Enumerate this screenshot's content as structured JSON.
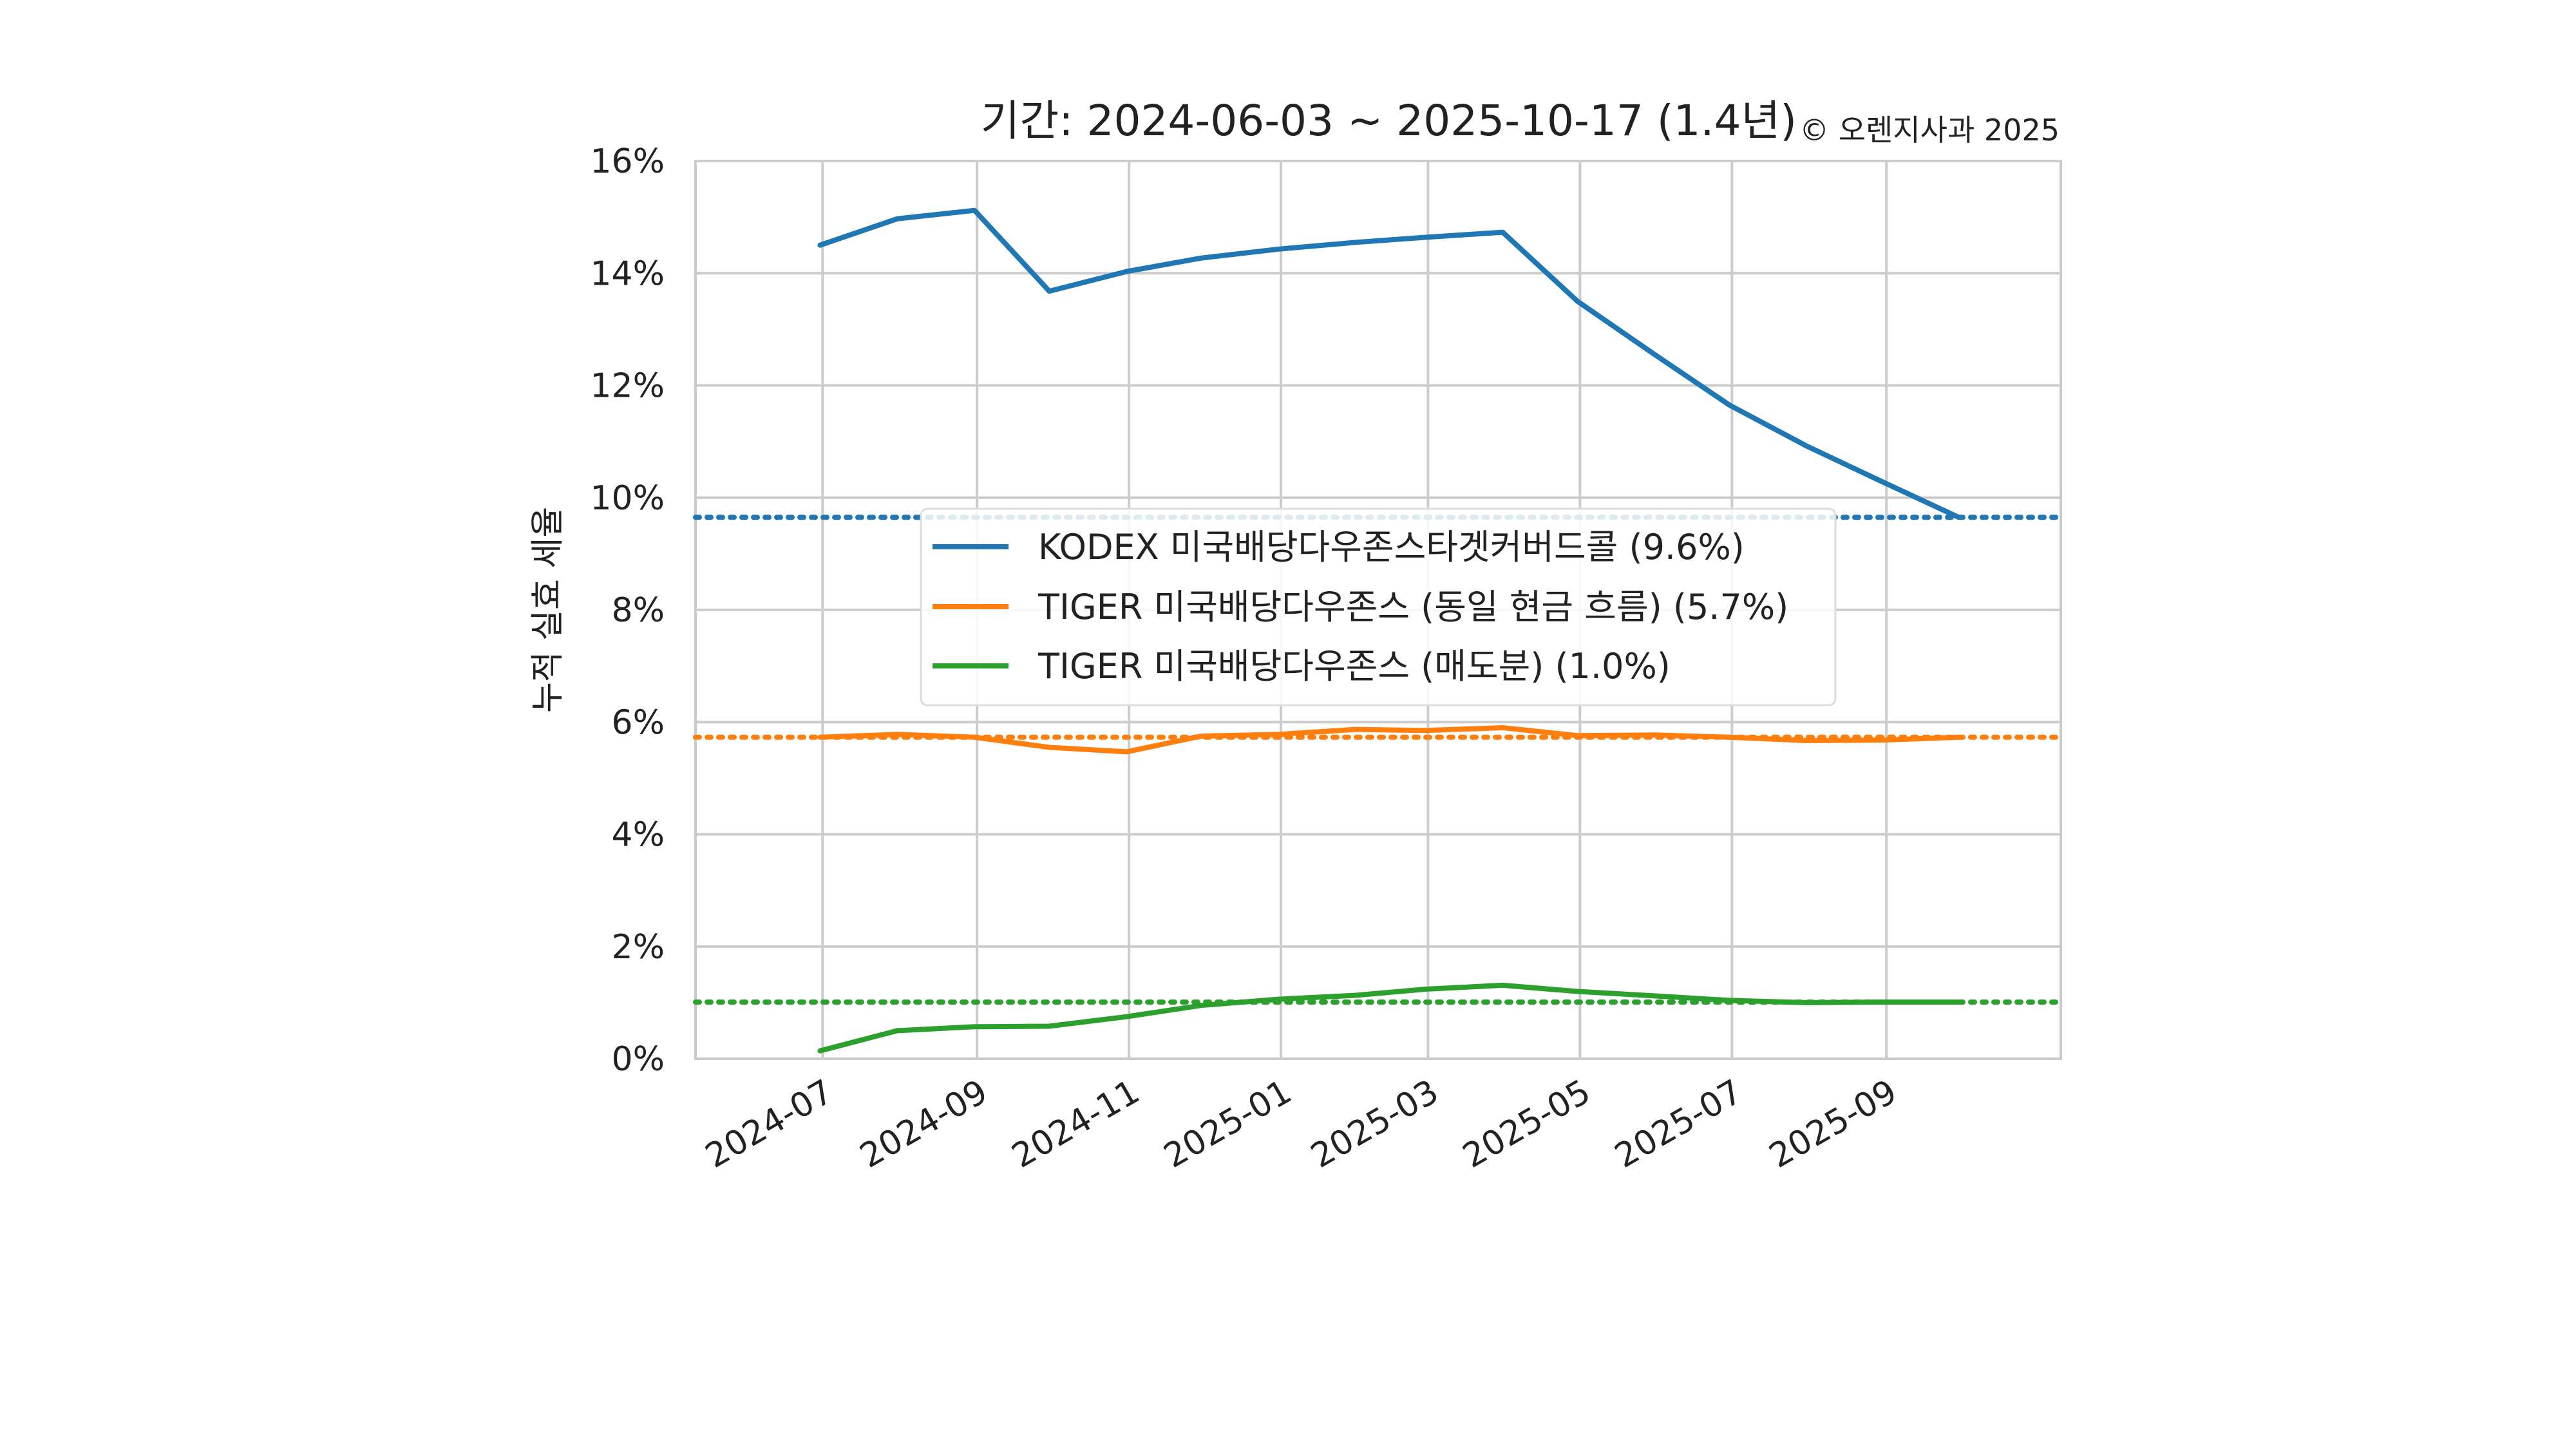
{
  "chart_data": {
    "type": "line",
    "title": "기간: 2024-06-03 ~ 2025-10-17 (1.4년)",
    "copyright": "© 오렌지사과 2025",
    "ylabel": "누적 실효 세율",
    "xlabel": "",
    "ylim": [
      0,
      16
    ],
    "xlim": [
      "2024-05-11",
      "2025-11-10"
    ],
    "yticks": [
      0,
      2,
      4,
      6,
      8,
      10,
      12,
      14,
      16
    ],
    "ytick_labels": [
      "0%",
      "2%",
      "4%",
      "6%",
      "8%",
      "10%",
      "12%",
      "14%",
      "16%"
    ],
    "xticks": [
      "2024-07-01",
      "2024-09-01",
      "2024-11-01",
      "2025-01-01",
      "2025-03-01",
      "2025-05-01",
      "2025-07-01",
      "2025-09-01"
    ],
    "xtick_labels": [
      "2024-07",
      "2024-09",
      "2024-11",
      "2025-01",
      "2025-03",
      "2025-05",
      "2025-07",
      "2025-09"
    ],
    "grid": true,
    "legend_position": "center",
    "x": [
      "2024-06-30",
      "2024-07-31",
      "2024-08-31",
      "2024-09-30",
      "2024-10-31",
      "2024-11-30",
      "2024-12-31",
      "2025-01-31",
      "2025-02-28",
      "2025-03-31",
      "2025-04-30",
      "2025-05-31",
      "2025-06-30",
      "2025-07-31",
      "2025-08-31",
      "2025-09-30"
    ],
    "series": [
      {
        "name": "KODEX 미국배당다우존스타겟커버드콜 (9.6%)",
        "color": "#1f77b4",
        "values": [
          14.5,
          14.97,
          15.12,
          13.68,
          14.03,
          14.27,
          14.43,
          14.55,
          14.64,
          14.73,
          13.5,
          12.55,
          11.65,
          10.92,
          10.27,
          9.65
        ],
        "reference_value": 9.65
      },
      {
        "name": "TIGER 미국배당다우존스 (동일 현금 흐름) (5.7%)",
        "color": "#ff7f0e",
        "values": [
          5.73,
          5.78,
          5.73,
          5.55,
          5.47,
          5.75,
          5.78,
          5.87,
          5.85,
          5.9,
          5.76,
          5.77,
          5.73,
          5.67,
          5.68,
          5.73
        ],
        "reference_value": 5.73
      },
      {
        "name": "TIGER 미국배당다우존스 (매도분) (1.0%)",
        "color": "#2ca02c",
        "values": [
          0.14,
          0.5,
          0.57,
          0.58,
          0.75,
          0.95,
          1.06,
          1.13,
          1.24,
          1.31,
          1.2,
          1.12,
          1.04,
          1.0,
          1.01,
          1.01
        ],
        "reference_value": 1.01
      }
    ]
  }
}
